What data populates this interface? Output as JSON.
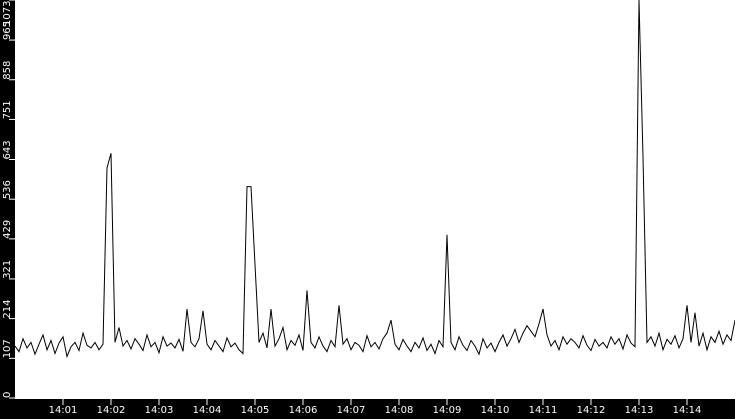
{
  "chart_data": {
    "type": "line",
    "title": "",
    "xlabel": "",
    "ylabel": "",
    "x_start": "14:00:00",
    "x_step_seconds": 5,
    "xlim": [
      "14:00:00",
      "14:15:00"
    ],
    "ylim": [
      0,
      1073
    ],
    "grid": false,
    "legend": "none",
    "y_ticks": [
      "0",
      "107",
      "214",
      "321",
      "429",
      "536",
      "643",
      "751",
      "858",
      "965",
      "1073"
    ],
    "x_ticks": [
      "14:01",
      "14:02",
      "14:03",
      "14:04",
      "14:05",
      "14:06",
      "14:07",
      "14:08",
      "14:09",
      "14:10",
      "14:11",
      "14:12",
      "14:13",
      "14:14"
    ],
    "colors": {
      "background": "#000000",
      "plot": "#ffffff",
      "line": "#000000",
      "text": "#ffffff"
    },
    "series": [
      {
        "values": [
          140,
          125,
          160,
          135,
          150,
          118,
          145,
          170,
          130,
          155,
          120,
          148,
          165,
          112,
          138,
          150,
          128,
          175,
          142,
          135,
          150,
          130,
          145,
          620,
          660,
          150,
          190,
          140,
          155,
          132,
          160,
          145,
          128,
          170,
          138,
          150,
          122,
          165,
          140,
          148,
          135,
          158,
          126,
          240,
          150,
          138,
          160,
          235,
          145,
          130,
          155,
          140,
          125,
          162,
          138,
          148,
          130,
          120,
          570,
          570,
          360,
          150,
          175,
          135,
          240,
          140,
          160,
          190,
          130,
          155,
          142,
          170,
          128,
          290,
          150,
          135,
          165,
          140,
          125,
          155,
          138,
          250,
          145,
          160,
          130,
          150,
          142,
          125,
          168,
          138,
          150,
          132,
          160,
          175,
          210,
          145,
          130,
          158,
          140,
          125,
          150,
          135,
          162,
          128,
          145,
          120,
          155,
          138,
          440,
          150,
          130,
          165,
          142,
          128,
          155,
          140,
          118,
          160,
          135,
          148,
          125,
          150,
          170,
          140,
          160,
          185,
          150,
          175,
          195,
          180,
          165,
          200,
          240,
          170,
          140,
          155,
          130,
          165,
          145,
          160,
          150,
          135,
          168,
          142,
          128,
          158,
          140,
          150,
          135,
          165,
          145,
          160,
          132,
          170,
          148,
          138,
          1073,
          650,
          150,
          165,
          140,
          175,
          130,
          158,
          145,
          168,
          135,
          160,
          250,
          150,
          230,
          140,
          175,
          130,
          165,
          150,
          180,
          145,
          170,
          155,
          210
        ]
      }
    ]
  }
}
